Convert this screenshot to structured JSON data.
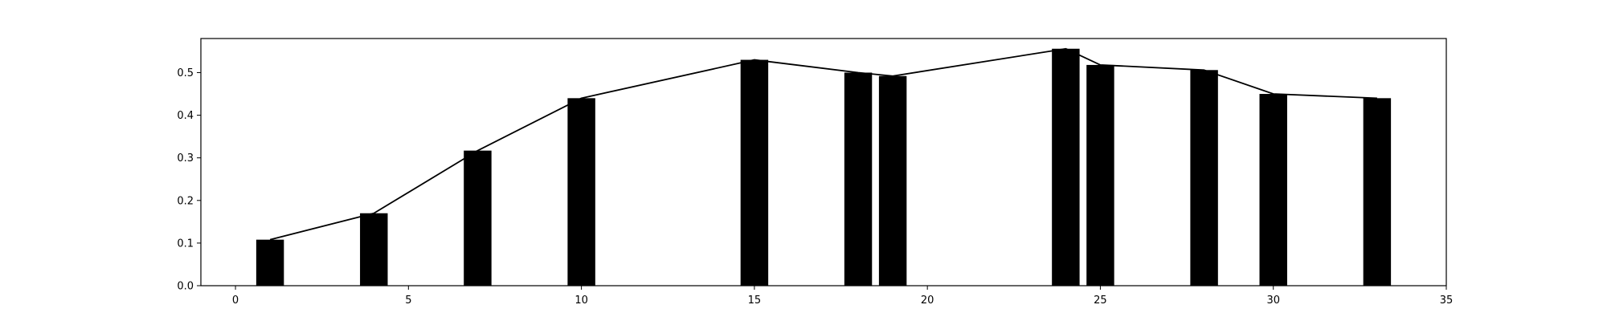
{
  "chart_data": {
    "type": "bar",
    "title": "",
    "xlabel": "",
    "ylabel": "",
    "xlim": [
      -1,
      35
    ],
    "ylim": [
      0,
      0.58
    ],
    "grid": false,
    "bar_width": 0.8,
    "x_ticks": [
      0,
      5,
      10,
      15,
      20,
      25,
      30,
      35
    ],
    "y_ticks": [
      0.0,
      0.1,
      0.2,
      0.3,
      0.4,
      0.5
    ],
    "x_tick_labels": [
      "0",
      "5",
      "10",
      "15",
      "20",
      "25",
      "30",
      "35"
    ],
    "y_tick_labels": [
      "0.0",
      "0.1",
      "0.2",
      "0.3",
      "0.4",
      "0.5"
    ],
    "series": [
      {
        "type": "bar",
        "x": [
          1,
          4,
          7,
          10,
          15,
          18,
          19,
          24,
          25,
          28,
          30,
          33
        ],
        "values": [
          0.108,
          0.17,
          0.317,
          0.44,
          0.53,
          0.5,
          0.492,
          0.556,
          0.518,
          0.506,
          0.45,
          0.44
        ],
        "color": "#000000"
      },
      {
        "type": "line",
        "x": [
          1,
          4,
          7,
          10,
          15,
          18,
          19,
          24,
          25,
          28,
          30,
          33
        ],
        "values": [
          0.108,
          0.17,
          0.317,
          0.44,
          0.53,
          0.5,
          0.492,
          0.556,
          0.518,
          0.506,
          0.45,
          0.44
        ],
        "color": "#000000"
      }
    ]
  }
}
